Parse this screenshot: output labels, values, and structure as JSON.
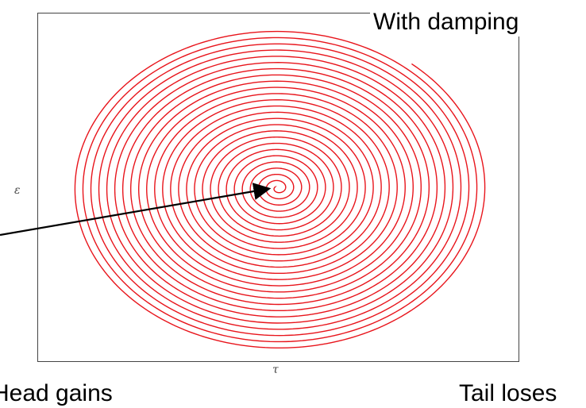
{
  "chart_data": {
    "type": "line",
    "title": "",
    "xlabel": "τ",
    "ylabel": "ε",
    "grid": false,
    "series": [
      {
        "style": "spiral",
        "color": "#e8141b",
        "turns": 26,
        "center": [
          0,
          0
        ],
        "outer_radius_x": 1.0,
        "outer_radius_y": 0.78,
        "inner_radius_x": 0.004,
        "inner_radius_y": 0.003,
        "start_angle_deg": 50
      }
    ],
    "annotations": [
      {
        "text": "With damping",
        "location": "top-right"
      },
      {
        "text": "Head gains",
        "location": "bottom-left"
      },
      {
        "text": "Tail loses",
        "location": "bottom-right"
      }
    ],
    "arrow": {
      "from": "left edge",
      "to": "spiral center",
      "color": "#000000"
    }
  }
}
